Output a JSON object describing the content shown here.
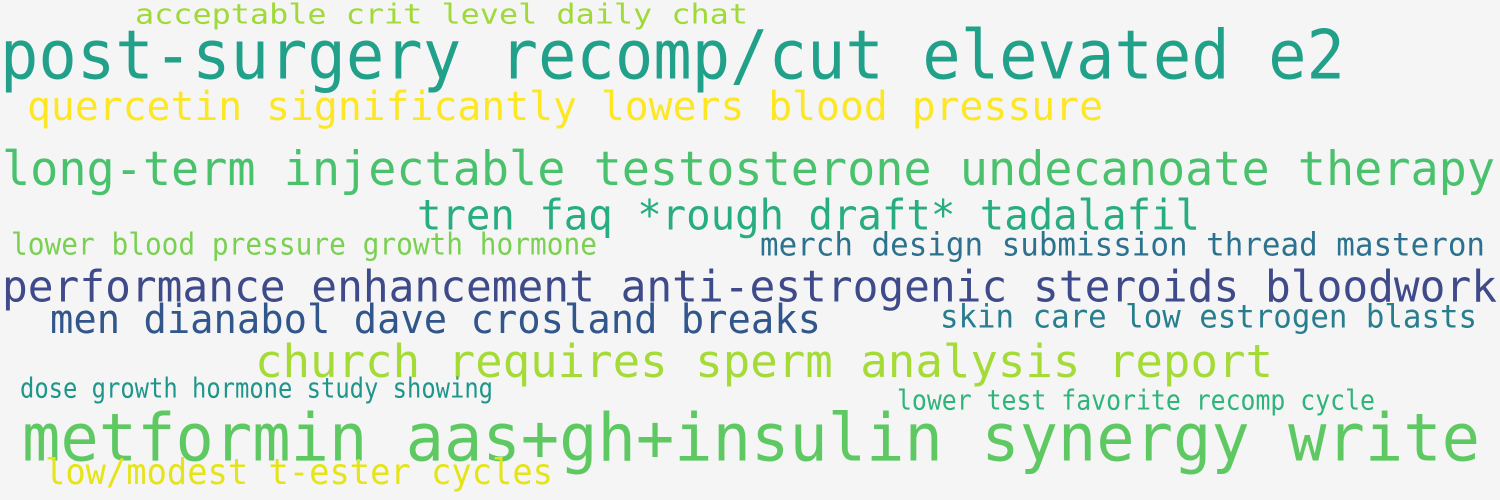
{
  "phrases": [
    {
      "text": "acceptable crit level daily chat",
      "color": "#a0da39"
    },
    {
      "text": "post-surgery recomp/cut elevated e2",
      "color": "#21a08a"
    },
    {
      "text": "quercetin significantly lowers blood pressure",
      "color": "#fde725"
    },
    {
      "text": "long-term injectable testosterone undecanoate therapy",
      "color": "#4ac16d"
    },
    {
      "text": "tren faq *rough draft* tadalafil",
      "color": "#27ad81"
    },
    {
      "text": "lower blood pressure growth hormone",
      "color": "#7ad151"
    },
    {
      "text": "merch design submission thread masteron",
      "color": "#2c728e"
    },
    {
      "text": "performance enhancement anti-estrogenic steroids bloodwork",
      "color": "#3e4a89"
    },
    {
      "text": "men dianabol dave crosland breaks",
      "color": "#31568c"
    },
    {
      "text": "skin care low estrogen blasts",
      "color": "#287d8e"
    },
    {
      "text": "church requires sperm analysis report",
      "color": "#a5db36"
    },
    {
      "text": "dose growth hormone study showing",
      "color": "#1f968b"
    },
    {
      "text": "lower test favorite recomp cycle",
      "color": "#2fb47c"
    },
    {
      "text": "metformin aas+gh+insulin synergy write",
      "color": "#5ec962"
    },
    {
      "text": "low/modest t-ester cycles",
      "color": "#e5e419"
    }
  ]
}
